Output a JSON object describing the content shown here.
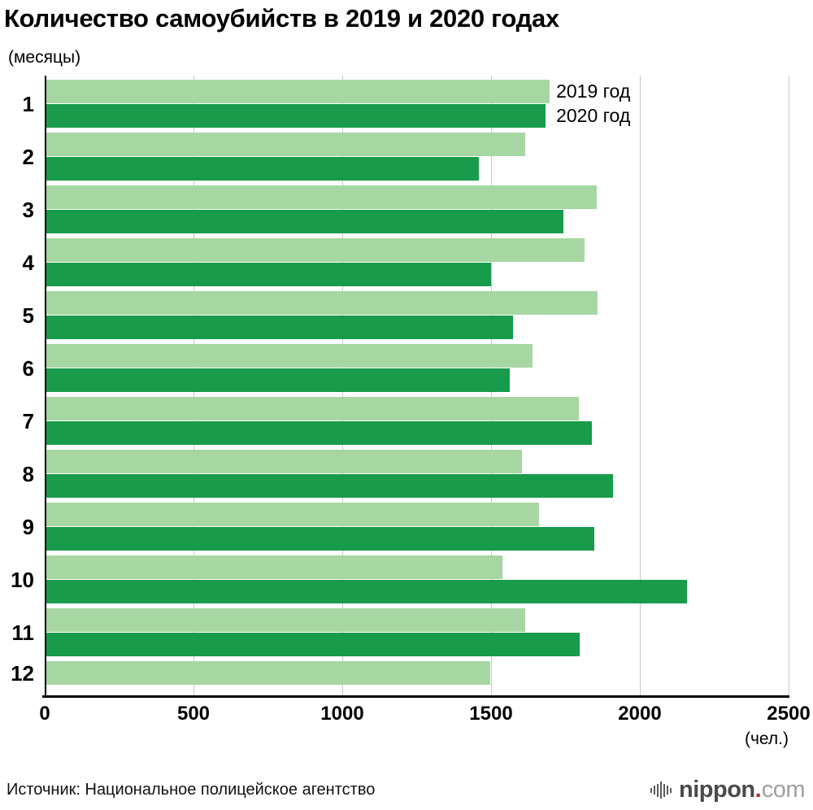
{
  "title": "Количество самоубийств в 2019 и 2020 годах",
  "y_axis_unit": "(месяцы)",
  "x_axis_unit": "(чел.)",
  "source": "Источник: Национальное полицейское агентство",
  "logo": {
    "name": "nippon",
    "dot": ".",
    "tld": "com"
  },
  "colors": {
    "series_2019": "#a6d7a2",
    "series_2020": "#189b4b",
    "axis": "#000000",
    "grid": "#c7c7c7"
  },
  "chart_data": {
    "type": "bar",
    "orientation": "horizontal",
    "title": "Количество самоубийств в 2019 и 2020 годах",
    "ylabel": "(месяцы)",
    "xlabel": "(чел.)",
    "categories": [
      "1",
      "2",
      "3",
      "4",
      "5",
      "6",
      "7",
      "8",
      "9",
      "10",
      "11",
      "12"
    ],
    "series": [
      {
        "name": "2019 год",
        "color": "#a6d7a2",
        "values": [
          1697,
          1616,
          1856,
          1814,
          1857,
          1640,
          1795,
          1603,
          1661,
          1539,
          1615,
          1498
        ]
      },
      {
        "name": "2020 год",
        "color": "#189b4b",
        "values": [
          1684,
          1459,
          1743,
          1500,
          1574,
          1564,
          1840,
          1911,
          1847,
          2158,
          1798,
          null
        ]
      }
    ],
    "x_ticks": [
      0,
      500,
      1000,
      1500,
      2000,
      2500
    ],
    "xlim": [
      0,
      2500
    ],
    "grid": true,
    "legend": [
      "2019 год",
      "2020 год"
    ],
    "legend_position": "inline-top-right"
  }
}
